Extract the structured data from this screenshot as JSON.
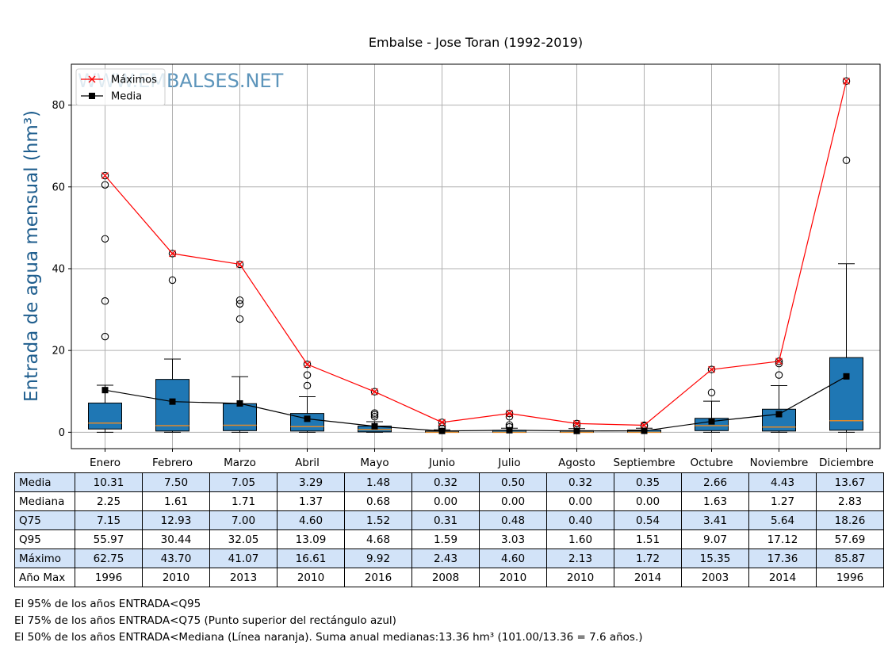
{
  "chart_data": {
    "type": "box",
    "title": "Embalse - Jose Toran (1992-2019)",
    "ylabel": "Entrada de agua mensual",
    "ylabel_unit": "(hm³)",
    "watermark": "WWW.EMBALSES.NET",
    "categories": [
      "Enero",
      "Febrero",
      "Marzo",
      "Abril",
      "Mayo",
      "Junio",
      "Julio",
      "Agosto",
      "Septiembre",
      "Octubre",
      "Noviembre",
      "Diciembre"
    ],
    "ylim": [
      -4,
      90
    ],
    "yticks": [
      0,
      20,
      40,
      60,
      80
    ],
    "grid": true,
    "legend_position": "top-left",
    "box_color": "#1f77b4",
    "median_color": "#e08a2c",
    "series": [
      {
        "name": "Máximos",
        "color": "#ff0000",
        "marker": "x",
        "values": [
          62.75,
          43.7,
          41.07,
          16.61,
          9.92,
          2.43,
          4.6,
          2.13,
          1.72,
          15.35,
          17.36,
          85.87
        ]
      },
      {
        "name": "Media",
        "color": "#000000",
        "marker": "square",
        "values": [
          10.31,
          7.5,
          7.05,
          3.29,
          1.48,
          0.32,
          0.5,
          0.32,
          0.35,
          2.66,
          4.43,
          13.67
        ]
      }
    ],
    "boxes": [
      {
        "q1": 0.8,
        "median": 2.25,
        "q3": 7.15,
        "whisker_low": 0.0,
        "whisker_high": 11.5,
        "outliers": [
          60.5,
          47.3,
          32.1,
          23.4,
          62.75
        ]
      },
      {
        "q1": 0.3,
        "median": 1.61,
        "q3": 12.93,
        "whisker_low": 0.0,
        "whisker_high": 17.9,
        "outliers": [
          37.2,
          43.7
        ]
      },
      {
        "q1": 0.4,
        "median": 1.71,
        "q3": 7.0,
        "whisker_low": 0.0,
        "whisker_high": 13.6,
        "outliers": [
          32.3,
          31.4,
          27.7,
          41.07
        ]
      },
      {
        "q1": 0.3,
        "median": 1.37,
        "q3": 4.6,
        "whisker_low": 0.0,
        "whisker_high": 8.7,
        "outliers": [
          14.0,
          11.4,
          16.61
        ]
      },
      {
        "q1": 0.1,
        "median": 0.68,
        "q3": 1.52,
        "whisker_low": 0.0,
        "whisker_high": 2.6,
        "outliers": [
          4.7,
          4.3,
          3.8,
          9.92
        ]
      },
      {
        "q1": 0.0,
        "median": 0.0,
        "q3": 0.31,
        "whisker_low": 0.0,
        "whisker_high": 0.6,
        "outliers": [
          1.5,
          0.9,
          2.43
        ]
      },
      {
        "q1": 0.0,
        "median": 0.0,
        "q3": 0.48,
        "whisker_low": 0.0,
        "whisker_high": 1.0,
        "outliers": [
          3.8,
          1.8,
          1.3,
          4.6
        ]
      },
      {
        "q1": 0.0,
        "median": 0.0,
        "q3": 0.4,
        "whisker_low": 0.0,
        "whisker_high": 0.9,
        "outliers": [
          1.6,
          2.13
        ]
      },
      {
        "q1": 0.0,
        "median": 0.0,
        "q3": 0.54,
        "whisker_low": 0.0,
        "whisker_high": 1.0,
        "outliers": [
          1.51,
          1.72
        ]
      },
      {
        "q1": 0.4,
        "median": 1.63,
        "q3": 3.41,
        "whisker_low": 0.0,
        "whisker_high": 7.6,
        "outliers": [
          9.7,
          15.35
        ]
      },
      {
        "q1": 0.3,
        "median": 1.27,
        "q3": 5.64,
        "whisker_low": 0.0,
        "whisker_high": 11.4,
        "outliers": [
          14.0,
          16.8,
          17.36
        ]
      },
      {
        "q1": 0.5,
        "median": 2.83,
        "q3": 18.26,
        "whisker_low": 0.0,
        "whisker_high": 41.2,
        "outliers": [
          66.5,
          85.87
        ]
      }
    ]
  },
  "table": {
    "rows": [
      {
        "label": "Media",
        "values": [
          "10.31",
          "7.50",
          "7.05",
          "3.29",
          "1.48",
          "0.32",
          "0.50",
          "0.32",
          "0.35",
          "2.66",
          "4.43",
          "13.67"
        ]
      },
      {
        "label": "Mediana",
        "values": [
          "2.25",
          "1.61",
          "1.71",
          "1.37",
          "0.68",
          "0.00",
          "0.00",
          "0.00",
          "0.00",
          "1.63",
          "1.27",
          "2.83"
        ]
      },
      {
        "label": "Q75",
        "values": [
          "7.15",
          "12.93",
          "7.00",
          "4.60",
          "1.52",
          "0.31",
          "0.48",
          "0.40",
          "0.54",
          "3.41",
          "5.64",
          "18.26"
        ]
      },
      {
        "label": "Q95",
        "values": [
          "55.97",
          "30.44",
          "32.05",
          "13.09",
          "4.68",
          "1.59",
          "3.03",
          "1.60",
          "1.51",
          "9.07",
          "17.12",
          "57.69"
        ]
      },
      {
        "label": "Máximo",
        "values": [
          "62.75",
          "43.70",
          "41.07",
          "16.61",
          "9.92",
          "2.43",
          "4.60",
          "2.13",
          "1.72",
          "15.35",
          "17.36",
          "85.87"
        ]
      },
      {
        "label": "Año Max",
        "values": [
          "1996",
          "2010",
          "2013",
          "2010",
          "2016",
          "2008",
          "2010",
          "2010",
          "2014",
          "2003",
          "2014",
          "1996"
        ]
      }
    ]
  },
  "notes": [
    "El 95% de los años ENTRADA<Q95",
    "El 75% de los años ENTRADA<Q75 (Punto superior del rectángulo azul)",
    "El 50% de los años ENTRADA<Mediana (Línea naranja). Suma anual medianas:13.36 hm³ (101.00/13.36 = 7.6 años.)"
  ]
}
